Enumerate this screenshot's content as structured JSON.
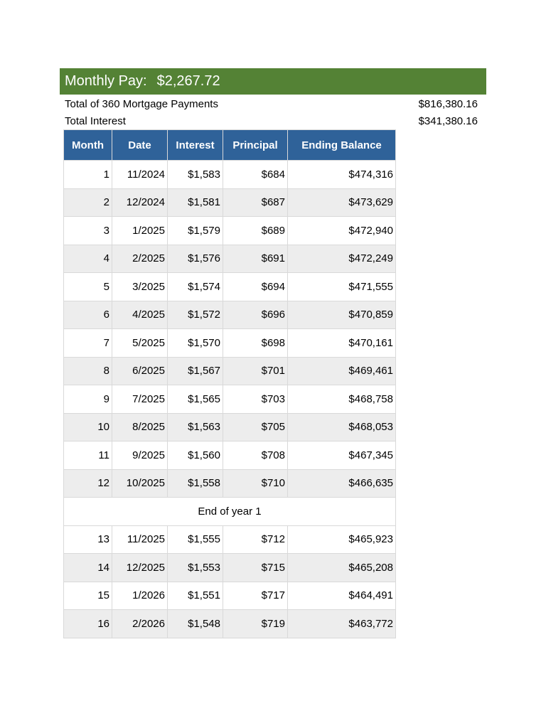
{
  "summary": {
    "monthly_pay_label": "Monthly Pay:",
    "monthly_pay_value": "$2,267.72",
    "total_payments_label": "Total of 360 Mortgage Payments",
    "total_payments_value": "$816,380.16",
    "total_interest_label": "Total Interest",
    "total_interest_value": "$341,380.16"
  },
  "colors": {
    "banner": "#548235",
    "header": "#2f6299",
    "alt_row": "#ededed"
  },
  "table": {
    "headers": [
      "Month",
      "Date",
      "Interest",
      "Principal",
      "Ending Balance"
    ],
    "rows_year1": [
      [
        "1",
        "11/2024",
        "$1,583",
        "$684",
        "$474,316"
      ],
      [
        "2",
        "12/2024",
        "$1,581",
        "$687",
        "$473,629"
      ],
      [
        "3",
        "1/2025",
        "$1,579",
        "$689",
        "$472,940"
      ],
      [
        "4",
        "2/2025",
        "$1,576",
        "$691",
        "$472,249"
      ],
      [
        "5",
        "3/2025",
        "$1,574",
        "$694",
        "$471,555"
      ],
      [
        "6",
        "4/2025",
        "$1,572",
        "$696",
        "$470,859"
      ],
      [
        "7",
        "5/2025",
        "$1,570",
        "$698",
        "$470,161"
      ],
      [
        "8",
        "6/2025",
        "$1,567",
        "$701",
        "$469,461"
      ],
      [
        "9",
        "7/2025",
        "$1,565",
        "$703",
        "$468,758"
      ],
      [
        "10",
        "8/2025",
        "$1,563",
        "$705",
        "$468,053"
      ],
      [
        "11",
        "9/2025",
        "$1,560",
        "$708",
        "$467,345"
      ],
      [
        "12",
        "10/2025",
        "$1,558",
        "$710",
        "$466,635"
      ]
    ],
    "year_end_label": "End of year 1",
    "rows_year2": [
      [
        "13",
        "11/2025",
        "$1,555",
        "$712",
        "$465,923"
      ],
      [
        "14",
        "12/2025",
        "$1,553",
        "$715",
        "$465,208"
      ],
      [
        "15",
        "1/2026",
        "$1,551",
        "$717",
        "$464,491"
      ],
      [
        "16",
        "2/2026",
        "$1,548",
        "$719",
        "$463,772"
      ]
    ]
  }
}
